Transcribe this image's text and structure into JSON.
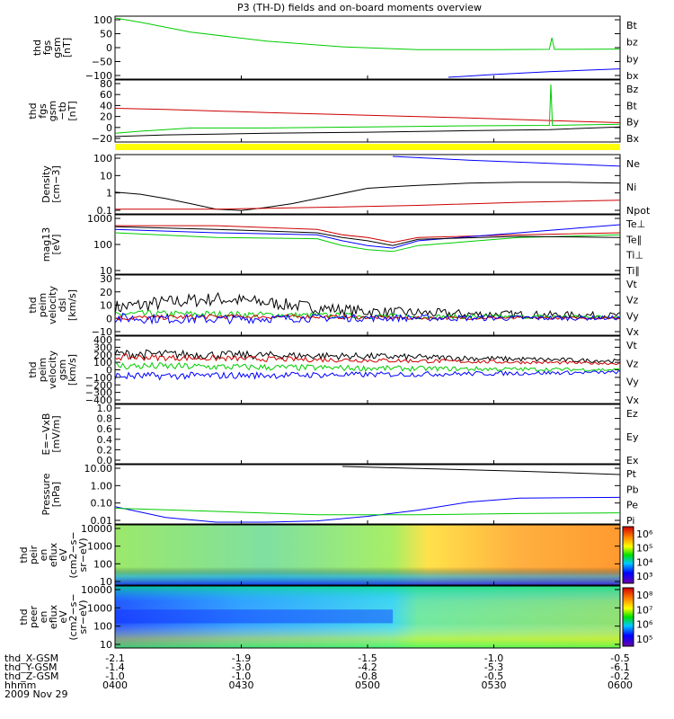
{
  "title": "P3 (TH-D) fields and on-board moments overview",
  "date_label": "2009 Nov 29",
  "ephemeris": {
    "rows": [
      {
        "label": "thd_X-GSM",
        "values": [
          "-2.1",
          "-1.9",
          "-1.5",
          "-1.0",
          "-0.5"
        ]
      },
      {
        "label": "thd_Y-GSM",
        "values": [
          "-1.4",
          "-3.0",
          "-4.2",
          "-5.3",
          "-6.1"
        ]
      },
      {
        "label": "thd_Z-GSM",
        "values": [
          "-1.0",
          "-1.0",
          "-0.8",
          "-0.5",
          "-0.2"
        ]
      },
      {
        "label": "hhmm",
        "values": [
          "0400",
          "0430",
          "0500",
          "0530",
          "0600"
        ]
      }
    ]
  },
  "colors": {
    "black": "#000000",
    "red": "#cc0000",
    "green": "#00cc00",
    "blue": "#0000ff",
    "yellow": "#ffff00"
  },
  "chart_data": [
    {
      "type": "line",
      "ylabel": [
        "thd",
        "fgs",
        "gsm",
        "[nT]"
      ],
      "yticks": [
        "100",
        "50",
        "0",
        "−50",
        "−100"
      ],
      "ylim": [
        -100,
        110
      ],
      "legend": [
        {
          "name": "Bt",
          "color": "black"
        },
        {
          "name": "bz",
          "color": "red"
        },
        {
          "name": "by",
          "color": "green"
        },
        {
          "name": "bx",
          "color": "blue"
        }
      ],
      "series": [
        {
          "name": "by",
          "color": "green",
          "x": [
            0,
            0.05,
            0.15,
            0.3,
            0.45,
            0.6,
            0.75,
            0.86,
            0.865,
            0.87,
            1.0
          ],
          "y": [
            110,
            95,
            60,
            28,
            8,
            -2,
            -2,
            -1,
            40,
            -1,
            0
          ]
        },
        {
          "name": "bx",
          "color": "blue",
          "x": [
            0.66,
            0.75,
            0.86,
            1.0
          ],
          "y": [
            -100,
            -90,
            -80,
            -70
          ]
        }
      ]
    },
    {
      "type": "line",
      "ylabel": [
        "thd",
        "fgs",
        "gsm",
        "−tb",
        "[nT]"
      ],
      "yticks": [
        "80",
        "60",
        "40",
        "20",
        "0",
        "−20"
      ],
      "ylim": [
        -25,
        85
      ],
      "legend": [
        {
          "name": "Bz",
          "color": "red"
        },
        {
          "name": "Bt",
          "color": "black"
        },
        {
          "name": "By",
          "color": "green"
        },
        {
          "name": "Bx",
          "color": "black"
        }
      ],
      "series": [
        {
          "name": "Bz",
          "color": "red",
          "x": [
            0,
            0.1,
            0.3,
            0.5,
            0.7,
            0.86,
            1.0
          ],
          "y": [
            35,
            33,
            27,
            22,
            17,
            12,
            8
          ]
        },
        {
          "name": "By",
          "color": "green",
          "x": [
            0,
            0.05,
            0.1,
            0.15,
            0.3,
            0.5,
            0.7,
            0.86,
            0.863,
            0.866,
            1.0
          ],
          "y": [
            -12,
            -8,
            -5,
            -2,
            -2,
            0,
            2,
            3,
            80,
            3,
            5
          ]
        },
        {
          "name": "Bx",
          "color": "black",
          "x": [
            0,
            0.1,
            0.3,
            0.5,
            0.7,
            0.86,
            1.0
          ],
          "y": [
            -18,
            -15,
            -12,
            -10,
            -7,
            -5,
            0
          ]
        }
      ]
    },
    {
      "type": "line",
      "ylabel": [
        "Density",
        "[cm−3]"
      ],
      "yticks": [
        "100",
        "10",
        "1",
        "0.1"
      ],
      "ylim": [
        0.08,
        150
      ],
      "log": true,
      "legend": [
        {
          "name": "Ne",
          "color": "red"
        },
        {
          "name": "Ni",
          "color": "black"
        },
        {
          "name": "Npot",
          "color": "blue"
        }
      ],
      "series": [
        {
          "name": "Ni",
          "color": "black",
          "x": [
            0,
            0.05,
            0.1,
            0.15,
            0.2,
            0.25,
            0.3,
            0.35,
            0.4,
            0.45,
            0.5,
            0.55,
            0.6,
            0.7,
            0.8,
            0.9,
            1.0
          ],
          "y": [
            1.2,
            0.9,
            0.5,
            0.25,
            0.12,
            0.1,
            0.15,
            0.25,
            0.5,
            1.0,
            2.0,
            2.5,
            3.0,
            4.0,
            4.5,
            4.5,
            4.0
          ]
        },
        {
          "name": "Ne",
          "color": "red",
          "x": [
            0,
            0.2,
            0.4,
            0.6,
            0.8,
            1.0
          ],
          "y": [
            0.12,
            0.12,
            0.15,
            0.2,
            0.3,
            0.4
          ]
        },
        {
          "name": "Npot",
          "color": "blue",
          "x": [
            0.55,
            0.7,
            0.85,
            1.0
          ],
          "y": [
            150,
            90,
            60,
            40
          ]
        }
      ]
    },
    {
      "type": "line",
      "ylabel": [
        "mag13",
        "[eV]"
      ],
      "yticks": [
        "1000",
        "100",
        "10"
      ],
      "ylim": [
        10,
        1200
      ],
      "log": true,
      "legend": [
        {
          "name": "Te⊥",
          "color": "red"
        },
        {
          "name": "Te∥",
          "color": "black"
        },
        {
          "name": "Ti⊥",
          "color": "blue"
        },
        {
          "name": "Ti∥",
          "color": "green"
        }
      ],
      "series": [
        {
          "name": "Te⊥",
          "color": "red",
          "x": [
            0,
            0.2,
            0.4,
            0.45,
            0.5,
            0.55,
            0.6,
            0.8,
            1.0
          ],
          "y": [
            550,
            550,
            400,
            250,
            200,
            130,
            200,
            250,
            300
          ]
        },
        {
          "name": "Ti⊥",
          "color": "blue",
          "x": [
            0,
            0.2,
            0.4,
            0.45,
            0.5,
            0.55,
            0.6,
            0.8,
            1.0
          ],
          "y": [
            400,
            300,
            250,
            150,
            100,
            80,
            150,
            300,
            600
          ]
        },
        {
          "name": "Ti∥",
          "color": "green",
          "x": [
            0,
            0.2,
            0.4,
            0.45,
            0.5,
            0.55,
            0.6,
            0.8,
            1.0
          ],
          "y": [
            300,
            200,
            180,
            100,
            70,
            60,
            100,
            200,
            250
          ]
        },
        {
          "name": "Te∥",
          "color": "black",
          "x": [
            0,
            0.2,
            0.4,
            0.45,
            0.5,
            0.55,
            0.6,
            0.8,
            1.0
          ],
          "y": [
            500,
            400,
            300,
            200,
            150,
            100,
            170,
            220,
            200
          ]
        }
      ]
    },
    {
      "type": "line",
      "ylabel": [
        "thd",
        "peim",
        "velocity",
        "dsl",
        "[km/s]"
      ],
      "yticks": [
        "30",
        "20",
        "10",
        "0",
        "−10"
      ],
      "ylim": [
        -12,
        32
      ],
      "legend": [
        {
          "name": "Vt",
          "color": "black"
        },
        {
          "name": "Vz",
          "color": "red"
        },
        {
          "name": "Vy",
          "color": "green"
        },
        {
          "name": "Vx",
          "color": "blue"
        }
      ],
      "noisy": true,
      "series": [
        {
          "name": "Vt",
          "color": "black",
          "x": [
            0,
            0.1,
            0.2,
            0.3,
            0.4,
            0.5,
            0.7,
            1.0
          ],
          "y": [
            8,
            12,
            15,
            12,
            8,
            5,
            3,
            2
          ],
          "noise": 6
        },
        {
          "name": "Vy",
          "color": "green",
          "x": [
            0,
            0.2,
            0.4,
            0.6,
            1.0
          ],
          "y": [
            3,
            3,
            2,
            1,
            1
          ],
          "noise": 3
        },
        {
          "name": "Vz",
          "color": "red",
          "x": [
            0,
            0.2,
            0.4,
            0.6,
            1.0
          ],
          "y": [
            0,
            1,
            1,
            0,
            0
          ],
          "noise": 2
        },
        {
          "name": "Vx",
          "color": "blue",
          "x": [
            0,
            0.2,
            0.4,
            0.6,
            1.0
          ],
          "y": [
            0,
            -1,
            0,
            0,
            0
          ],
          "noise": 4
        }
      ]
    },
    {
      "type": "line",
      "ylabel": [
        "thd",
        "peim",
        "velocity",
        "gsm",
        "[km/s]"
      ],
      "yticks": [
        "400",
        "300",
        "200",
        "100",
        "0",
        "−100",
        "−200",
        "−300",
        "−400"
      ],
      "ylim": [
        -400,
        400
      ],
      "legend": [
        {
          "name": "Vt",
          "color": "black"
        },
        {
          "name": "Vz",
          "color": "red"
        },
        {
          "name": "Vy",
          "color": "green"
        },
        {
          "name": "Vx",
          "color": "blue"
        }
      ],
      "noisy": true,
      "series": [
        {
          "name": "Vt",
          "color": "black",
          "x": [
            0,
            0.5,
            1.0
          ],
          "y": [
            200,
            170,
            110
          ],
          "noise": 60
        },
        {
          "name": "Vz",
          "color": "red",
          "x": [
            0,
            0.5,
            1.0
          ],
          "y": [
            160,
            120,
            80
          ],
          "noise": 40
        },
        {
          "name": "Vy",
          "color": "green",
          "x": [
            0,
            0.5,
            1.0
          ],
          "y": [
            50,
            20,
            0
          ],
          "noise": 50
        },
        {
          "name": "Vx",
          "color": "blue",
          "x": [
            0,
            0.5,
            1.0
          ],
          "y": [
            -80,
            -60,
            -30
          ],
          "noise": 50
        }
      ]
    },
    {
      "type": "line",
      "ylabel": [
        "E=−VxB",
        "[mV/m]"
      ],
      "yticks": [
        "1.0",
        "0.8",
        "0.6",
        "0.4",
        "0.2",
        "0.0"
      ],
      "ylim": [
        0,
        1.0
      ],
      "legend": [
        {
          "name": "Ez",
          "color": "red"
        },
        {
          "name": "Ey",
          "color": "green"
        },
        {
          "name": "Ex",
          "color": "blue"
        }
      ],
      "series": []
    },
    {
      "type": "line",
      "ylabel": [
        "Pressure",
        "[nPa]"
      ],
      "yticks": [
        "10.00",
        "1.00",
        "0.10",
        "0.01"
      ],
      "ylim": [
        0.005,
        20
      ],
      "log": true,
      "legend": [
        {
          "name": "Pt",
          "color": "black"
        },
        {
          "name": "Pb",
          "color": "red"
        },
        {
          "name": "Pe",
          "color": "green"
        },
        {
          "name": "Pi",
          "color": "blue"
        }
      ],
      "series": [
        {
          "name": "Pt",
          "color": "black",
          "x": [
            0.45,
            0.6,
            0.8,
            1.0
          ],
          "y": [
            20,
            15,
            10,
            6
          ]
        },
        {
          "name": "Pi",
          "color": "blue",
          "x": [
            0,
            0.1,
            0.2,
            0.3,
            0.4,
            0.5,
            0.6,
            0.7,
            0.8,
            1.0
          ],
          "y": [
            0.05,
            0.01,
            0.004,
            0.004,
            0.006,
            0.012,
            0.03,
            0.1,
            0.18,
            0.2
          ]
        },
        {
          "name": "Pe",
          "color": "green",
          "x": [
            0,
            0.2,
            0.4,
            0.6,
            0.8,
            1.0
          ],
          "y": [
            0.04,
            0.025,
            0.015,
            0.015,
            0.018,
            0.02
          ]
        }
      ]
    },
    {
      "type": "heatmap",
      "ylabel": [
        "thd",
        "peir",
        "en",
        "eflux",
        "eV",
        "(cm2−s−",
        "sr−eV)"
      ],
      "yticks": [
        "10000",
        "1000",
        "100",
        "10"
      ],
      "colorbar_ticks": [
        "10⁶",
        "10⁵",
        "10⁴",
        "10³"
      ],
      "palette": "rainbow-ion"
    },
    {
      "type": "heatmap",
      "ylabel": [
        "thd",
        "peer",
        "en",
        "eflux",
        "eV",
        "(cm2−s−",
        "sr−eV)"
      ],
      "yticks": [
        "10000",
        "1000",
        "100",
        "10"
      ],
      "colorbar_ticks": [
        "10⁸",
        "10⁷",
        "10⁶",
        "10⁵"
      ],
      "palette": "rainbow-electron"
    }
  ]
}
